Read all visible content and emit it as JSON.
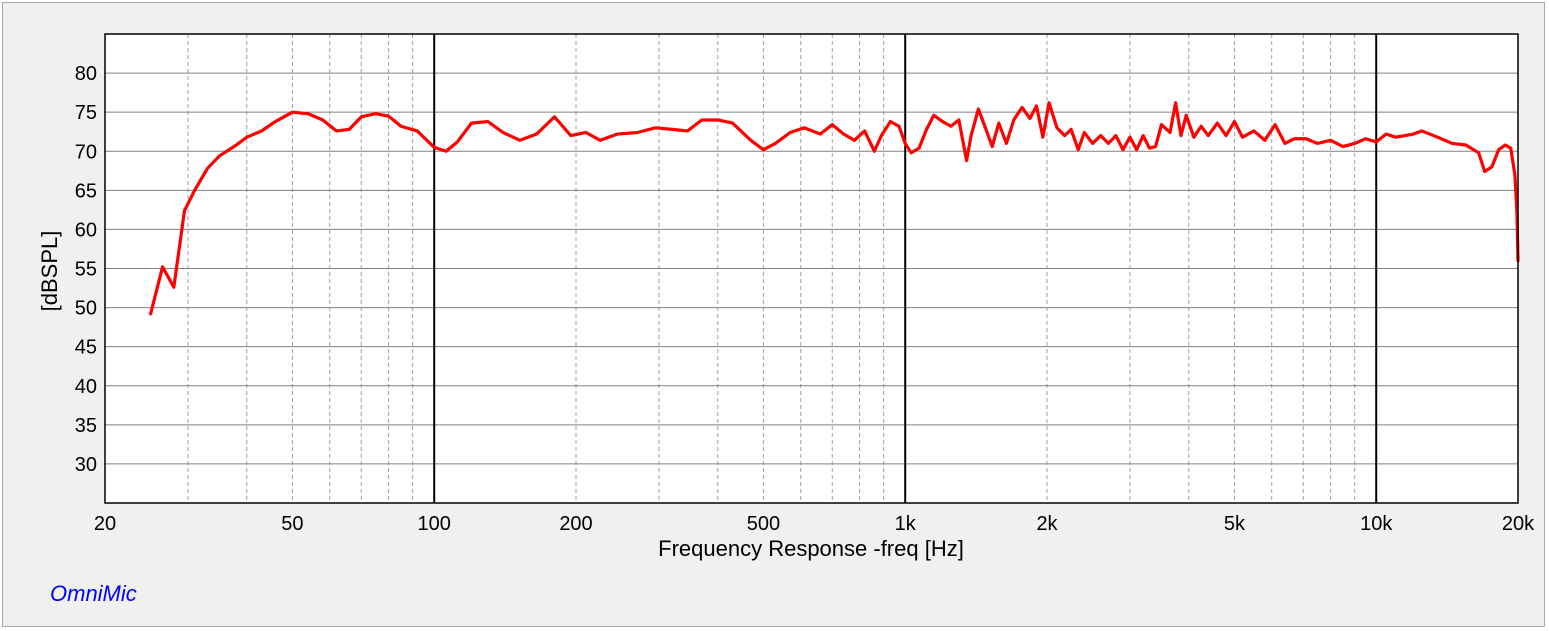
{
  "brand": "OmniMic",
  "colors": {
    "trace": "#ff0000",
    "background": "#f0f0f0",
    "plot_area": "#ffffff",
    "grid_major": "#000000",
    "grid_minor": "#a0a0a0",
    "brand": "#0000ff"
  },
  "chart_data": {
    "type": "line",
    "xlabel": "Frequency Response -freq [Hz]",
    "ylabel": "[dBSPL]",
    "x_scale": "log",
    "xlim": [
      20,
      20000
    ],
    "ylim": [
      25,
      85
    ],
    "grid": true,
    "x_tick_values": [
      20,
      50,
      100,
      200,
      500,
      1000,
      2000,
      5000,
      10000,
      20000
    ],
    "x_tick_labels": [
      "20",
      "50",
      "100",
      "200",
      "500",
      "1k",
      "2k",
      "5k",
      "10k",
      "20k"
    ],
    "y_tick_values": [
      30,
      35,
      40,
      45,
      50,
      55,
      60,
      65,
      70,
      75,
      80
    ],
    "y_tick_labels": [
      "30",
      "35",
      "40",
      "45",
      "50",
      "55",
      "60",
      "65",
      "70",
      "75",
      "80"
    ],
    "series": [
      {
        "color": "#ff0000",
        "points": [
          [
            25,
            49.2
          ],
          [
            26.5,
            55.2
          ],
          [
            28,
            52.6
          ],
          [
            29.5,
            62.4
          ],
          [
            31,
            65.0
          ],
          [
            33,
            67.8
          ],
          [
            35,
            69.4
          ],
          [
            38,
            70.8
          ],
          [
            40,
            71.8
          ],
          [
            43,
            72.6
          ],
          [
            46,
            73.8
          ],
          [
            50,
            75.0
          ],
          [
            54,
            74.8
          ],
          [
            58,
            74.0
          ],
          [
            62,
            72.6
          ],
          [
            66,
            72.8
          ],
          [
            70,
            74.4
          ],
          [
            75,
            74.8
          ],
          [
            80,
            74.5
          ],
          [
            85,
            73.2
          ],
          [
            92,
            72.6
          ],
          [
            100,
            70.5
          ],
          [
            106,
            70.0
          ],
          [
            112,
            71.2
          ],
          [
            120,
            73.6
          ],
          [
            130,
            73.8
          ],
          [
            140,
            72.4
          ],
          [
            152,
            71.4
          ],
          [
            165,
            72.2
          ],
          [
            180,
            74.4
          ],
          [
            195,
            72.0
          ],
          [
            210,
            72.4
          ],
          [
            225,
            71.4
          ],
          [
            245,
            72.2
          ],
          [
            270,
            72.4
          ],
          [
            295,
            73.0
          ],
          [
            320,
            72.8
          ],
          [
            345,
            72.6
          ],
          [
            370,
            74.0
          ],
          [
            400,
            74.0
          ],
          [
            430,
            73.6
          ],
          [
            470,
            71.4
          ],
          [
            500,
            70.2
          ],
          [
            530,
            71.0
          ],
          [
            570,
            72.4
          ],
          [
            610,
            73.0
          ],
          [
            660,
            72.2
          ],
          [
            700,
            73.4
          ],
          [
            740,
            72.2
          ],
          [
            780,
            71.4
          ],
          [
            820,
            72.6
          ],
          [
            860,
            70.0
          ],
          [
            890,
            72.0
          ],
          [
            930,
            73.8
          ],
          [
            970,
            73.2
          ],
          [
            1000,
            71.0
          ],
          [
            1030,
            69.8
          ],
          [
            1070,
            70.4
          ],
          [
            1110,
            72.8
          ],
          [
            1150,
            74.6
          ],
          [
            1200,
            73.8
          ],
          [
            1250,
            73.2
          ],
          [
            1300,
            74.0
          ],
          [
            1350,
            68.8
          ],
          [
            1380,
            72.0
          ],
          [
            1430,
            75.4
          ],
          [
            1480,
            73.0
          ],
          [
            1530,
            70.6
          ],
          [
            1580,
            73.6
          ],
          [
            1640,
            71.0
          ],
          [
            1700,
            74.0
          ],
          [
            1770,
            75.6
          ],
          [
            1840,
            74.2
          ],
          [
            1900,
            75.8
          ],
          [
            1960,
            71.8
          ],
          [
            2020,
            76.2
          ],
          [
            2100,
            73.0
          ],
          [
            2180,
            72.0
          ],
          [
            2250,
            72.8
          ],
          [
            2330,
            70.2
          ],
          [
            2400,
            72.4
          ],
          [
            2500,
            71.0
          ],
          [
            2600,
            72.0
          ],
          [
            2700,
            71.0
          ],
          [
            2800,
            72.0
          ],
          [
            2900,
            70.2
          ],
          [
            3000,
            71.8
          ],
          [
            3100,
            70.2
          ],
          [
            3200,
            72.0
          ],
          [
            3300,
            70.4
          ],
          [
            3400,
            70.6
          ],
          [
            3500,
            73.4
          ],
          [
            3650,
            72.4
          ],
          [
            3750,
            76.2
          ],
          [
            3850,
            72.0
          ],
          [
            3950,
            74.6
          ],
          [
            4100,
            71.8
          ],
          [
            4250,
            73.2
          ],
          [
            4400,
            72.0
          ],
          [
            4600,
            73.6
          ],
          [
            4800,
            72.0
          ],
          [
            5000,
            73.8
          ],
          [
            5200,
            71.8
          ],
          [
            5500,
            72.6
          ],
          [
            5800,
            71.4
          ],
          [
            6100,
            73.4
          ],
          [
            6400,
            71.0
          ],
          [
            6700,
            71.6
          ],
          [
            7100,
            71.6
          ],
          [
            7500,
            71.0
          ],
          [
            8000,
            71.4
          ],
          [
            8500,
            70.6
          ],
          [
            9000,
            71.0
          ],
          [
            9500,
            71.6
          ],
          [
            10000,
            71.2
          ],
          [
            10500,
            72.2
          ],
          [
            11000,
            71.8
          ],
          [
            12000,
            72.2
          ],
          [
            12500,
            72.6
          ],
          [
            13500,
            71.8
          ],
          [
            14500,
            71.0
          ],
          [
            15500,
            70.8
          ],
          [
            16500,
            69.8
          ],
          [
            17000,
            67.4
          ],
          [
            17600,
            68.0
          ],
          [
            18200,
            70.2
          ],
          [
            18800,
            70.8
          ],
          [
            19300,
            70.4
          ],
          [
            19700,
            67.0
          ],
          [
            19900,
            62.0
          ],
          [
            20000,
            56.0
          ]
        ]
      }
    ]
  }
}
